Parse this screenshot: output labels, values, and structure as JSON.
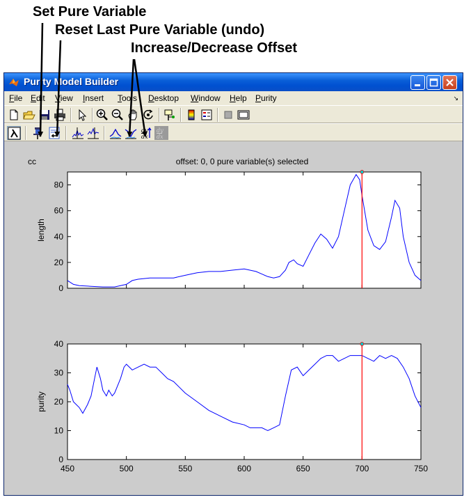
{
  "callouts": {
    "set_pure": "Set Pure Variable",
    "reset_last": "Reset Last Pure Variable (undo)",
    "offset": "Increase/Decrease Offset"
  },
  "window": {
    "title": "Purity Model Builder",
    "menu": [
      "File",
      "Edit",
      "View",
      "Insert",
      "Tools",
      "Desktop",
      "Window",
      "Help",
      "Purity"
    ]
  },
  "toolbar1_icons": [
    "new-file-icon",
    "open-folder-icon",
    "save-icon",
    "print-icon",
    "pointer-icon",
    "zoom-in-icon",
    "zoom-out-icon",
    "pan-hand-icon",
    "rotate-3d-icon",
    "data-cursor-icon",
    "colorbar-icon",
    "legend-icon",
    "hide-tools-icon",
    "show-tools-icon"
  ],
  "toolbar2_icons": [
    "lambda-icon",
    "pin-icon",
    "undo-pure-icon",
    "max-line-icon",
    "min-line-icon",
    "increase-offset-icon",
    "decrease-offset-icon",
    "derivative-icon",
    "derivative-disabled-icon"
  ],
  "figure": {
    "corner_label": "cc",
    "title": "offset: 0, 0 pure variable(s) selected"
  },
  "colors": {
    "series": "#0000ff",
    "selection_line": "#ff0000",
    "title_bar": "#0a5fd8",
    "figure_background": "#cccccc"
  },
  "chart_data": [
    {
      "type": "line",
      "title": "offset: 0, 0 pure variable(s) selected",
      "xlabel": "",
      "ylabel": "length",
      "xlim": [
        450,
        750
      ],
      "ylim": [
        0,
        90
      ],
      "yticks": [
        0,
        20,
        40,
        60,
        80
      ],
      "xticks": [
        450,
        500,
        550,
        600,
        650,
        700,
        750
      ],
      "show_xtick_labels": false,
      "selected_x": 700,
      "series": [
        {
          "x": [
            450,
            455,
            460,
            470,
            480,
            490,
            500,
            505,
            510,
            520,
            530,
            540,
            550,
            560,
            570,
            580,
            590,
            600,
            610,
            615,
            620,
            625,
            630,
            635,
            638,
            642,
            645,
            650,
            655,
            660,
            665,
            670,
            675,
            680,
            685,
            690,
            695,
            698,
            700,
            705,
            710,
            715,
            720,
            725,
            728,
            732,
            735,
            740,
            745,
            750
          ],
          "y": [
            6,
            3,
            2,
            1.5,
            1,
            1,
            3,
            6,
            7,
            8,
            8,
            8,
            10,
            12,
            13,
            13,
            14,
            15,
            13,
            11,
            9,
            8,
            9,
            14,
            20,
            22,
            19,
            17,
            26,
            35,
            42,
            38,
            31,
            40,
            60,
            80,
            88,
            84,
            72,
            45,
            33,
            30,
            36,
            55,
            68,
            62,
            40,
            20,
            10,
            6
          ]
        }
      ]
    },
    {
      "type": "line",
      "title": "",
      "xlabel": "",
      "ylabel": "purity",
      "xlim": [
        450,
        750
      ],
      "ylim": [
        0,
        40
      ],
      "yticks": [
        0,
        10,
        20,
        30,
        40
      ],
      "xticks": [
        450,
        500,
        550,
        600,
        650,
        700,
        750
      ],
      "show_xtick_labels": true,
      "selected_x": 700,
      "series": [
        {
          "x": [
            450,
            452,
            455,
            460,
            463,
            467,
            470,
            473,
            475,
            478,
            480,
            483,
            485,
            488,
            490,
            495,
            498,
            500,
            505,
            510,
            515,
            520,
            525,
            530,
            535,
            540,
            545,
            550,
            560,
            570,
            580,
            590,
            600,
            605,
            610,
            615,
            620,
            625,
            630,
            635,
            640,
            645,
            650,
            655,
            660,
            665,
            670,
            675,
            680,
            685,
            690,
            695,
            700,
            705,
            710,
            715,
            720,
            725,
            730,
            735,
            740,
            745,
            750
          ],
          "y": [
            26,
            24,
            20,
            18,
            16,
            19,
            22,
            28,
            32,
            28,
            24,
            22,
            24,
            22,
            23,
            28,
            32,
            33,
            31,
            32,
            33,
            32,
            32,
            30,
            28,
            27,
            25,
            23,
            20,
            17,
            15,
            13,
            12,
            11,
            11,
            11,
            10,
            11,
            12,
            22,
            31,
            32,
            29,
            31,
            33,
            35,
            36,
            36,
            34,
            35,
            36,
            36,
            36,
            35,
            34,
            36,
            35,
            36,
            35,
            32,
            28,
            22,
            18
          ]
        }
      ]
    }
  ]
}
